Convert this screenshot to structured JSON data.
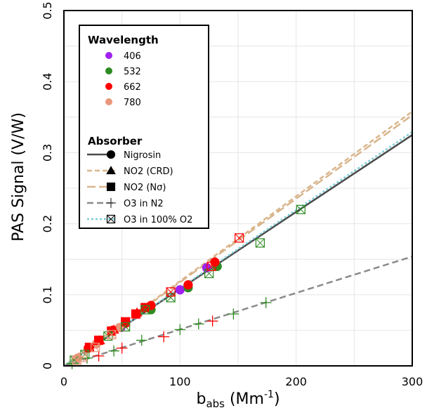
{
  "chart_data": {
    "type": "scatter",
    "xlabel": "b",
    "xlabel_sub": "abs",
    "xlabel_unit_open": " (Mm",
    "xlabel_sup": "-1",
    "xlabel_unit_close": ")",
    "ylabel": "PAS Signal (V/W)",
    "xlim": [
      0,
      300
    ],
    "ylim": [
      0,
      0.5
    ],
    "x_ticks": [
      0,
      100,
      200,
      300
    ],
    "y_ticks": [
      0,
      0.1,
      0.2,
      0.3,
      0.4,
      0.5
    ],
    "x_tick_labels": [
      "0",
      "100",
      "200",
      "300"
    ],
    "y_tick_labels": [
      "0",
      "0.1",
      "0.2",
      "0.3",
      "0.4",
      "0.5"
    ],
    "grid": true,
    "legend_position": "top-left",
    "legend_wavelength_title": "Wavelength",
    "legend_absorber_title": "Absorber",
    "wavelengths": [
      {
        "name": "406",
        "color": "#a020f0"
      },
      {
        "name": "532",
        "color": "#2e8b22"
      },
      {
        "name": "662",
        "color": "#ff0000"
      },
      {
        "name": "780",
        "color": "#e9967a"
      }
    ],
    "absorbers": [
      {
        "name": "Nigrosin",
        "marker": "circle",
        "line_color": "#4a4a4a",
        "dash": "",
        "line_width": 2.5
      },
      {
        "name": "NO2 (CRD)",
        "marker": "triangle",
        "line_color": "#d9b58c",
        "dash": "7,4",
        "line_width": 2.5
      },
      {
        "name": "NO2 (Nσ)",
        "marker": "square",
        "line_color": "#d9b58c",
        "dash": "12,5",
        "line_width": 2.5
      },
      {
        "name": "O3 in N2",
        "marker": "plus",
        "line_color": "#8a8a8a",
        "dash": "9,5",
        "line_width": 2.5
      },
      {
        "name": "O3 in 100% O2",
        "marker": "boxx",
        "line_color": "#7ecfd8",
        "dash": "3,3",
        "line_width": 2.5
      }
    ],
    "fit_lines": [
      {
        "absorber": "Nigrosin",
        "slope": 0.001083
      },
      {
        "absorber": "NO2 (CRD)",
        "slope": 0.001193
      },
      {
        "absorber": "NO2 (Nσ)",
        "slope": 0.001176
      },
      {
        "absorber": "O3 in N2",
        "slope": 0.000513
      },
      {
        "absorber": "O3 in 100% O2",
        "slope": 0.001097
      }
    ],
    "series": [
      {
        "absorber": "Nigrosin",
        "wavelength": "406",
        "points": [
          [
            49,
            0.054
          ],
          [
            100,
            0.107
          ],
          [
            123,
            0.138
          ]
        ]
      },
      {
        "absorber": "Nigrosin",
        "wavelength": "532",
        "points": [
          [
            75,
            0.079
          ],
          [
            107,
            0.11
          ],
          [
            132,
            0.14
          ]
        ]
      },
      {
        "absorber": "Nigrosin",
        "wavelength": "662",
        "points": [
          [
            21,
            0.025
          ],
          [
            30,
            0.036
          ],
          [
            42,
            0.05
          ],
          [
            53,
            0.06
          ],
          [
            62,
            0.073
          ],
          [
            75,
            0.085
          ],
          [
            107,
            0.114
          ],
          [
            130,
            0.146
          ]
        ]
      },
      {
        "absorber": "Nigrosin",
        "wavelength": "780",
        "points": [
          [
            12,
            0.011
          ],
          [
            28,
            0.031
          ],
          [
            48,
            0.054
          ]
        ]
      },
      {
        "absorber": "NO2 (CRD)",
        "wavelength": "662",
        "points": [
          [
            31,
            0.036
          ],
          [
            43,
            0.051
          ],
          [
            63,
            0.075
          ]
        ]
      },
      {
        "absorber": "NO2 (Nσ)",
        "wavelength": "662",
        "points": [
          [
            22,
            0.026
          ],
          [
            30,
            0.036
          ],
          [
            41,
            0.049
          ],
          [
            53,
            0.062
          ],
          [
            62,
            0.073
          ],
          [
            70,
            0.082
          ]
        ]
      },
      {
        "absorber": "O3 in N2",
        "wavelength": "532",
        "points": [
          [
            7,
            0.003
          ],
          [
            20,
            0.011
          ],
          [
            43,
            0.021
          ],
          [
            67,
            0.036
          ],
          [
            100,
            0.051
          ],
          [
            116,
            0.059
          ],
          [
            146,
            0.073
          ],
          [
            174,
            0.089
          ]
        ]
      },
      {
        "absorber": "O3 in N2",
        "wavelength": "662",
        "points": [
          [
            30,
            0.014
          ],
          [
            50,
            0.025
          ],
          [
            86,
            0.041
          ],
          [
            128,
            0.063
          ]
        ]
      },
      {
        "absorber": "O3 in 100% O2",
        "wavelength": "532",
        "points": [
          [
            9,
            0.008
          ],
          [
            18,
            0.016
          ],
          [
            38,
            0.042
          ],
          [
            53,
            0.055
          ],
          [
            70,
            0.079
          ],
          [
            92,
            0.096
          ],
          [
            125,
            0.13
          ],
          [
            169,
            0.173
          ],
          [
            204,
            0.22
          ]
        ]
      },
      {
        "absorber": "O3 in 100% O2",
        "wavelength": "662",
        "points": [
          [
            92,
            0.104
          ],
          [
            151,
            0.18
          ],
          [
            127,
            0.14
          ]
        ]
      },
      {
        "absorber": "O3 in 100% O2",
        "wavelength": "780",
        "points": [
          [
            11,
            0.008
          ],
          [
            16,
            0.012
          ],
          [
            27,
            0.026
          ],
          [
            41,
            0.044
          ]
        ]
      }
    ]
  }
}
